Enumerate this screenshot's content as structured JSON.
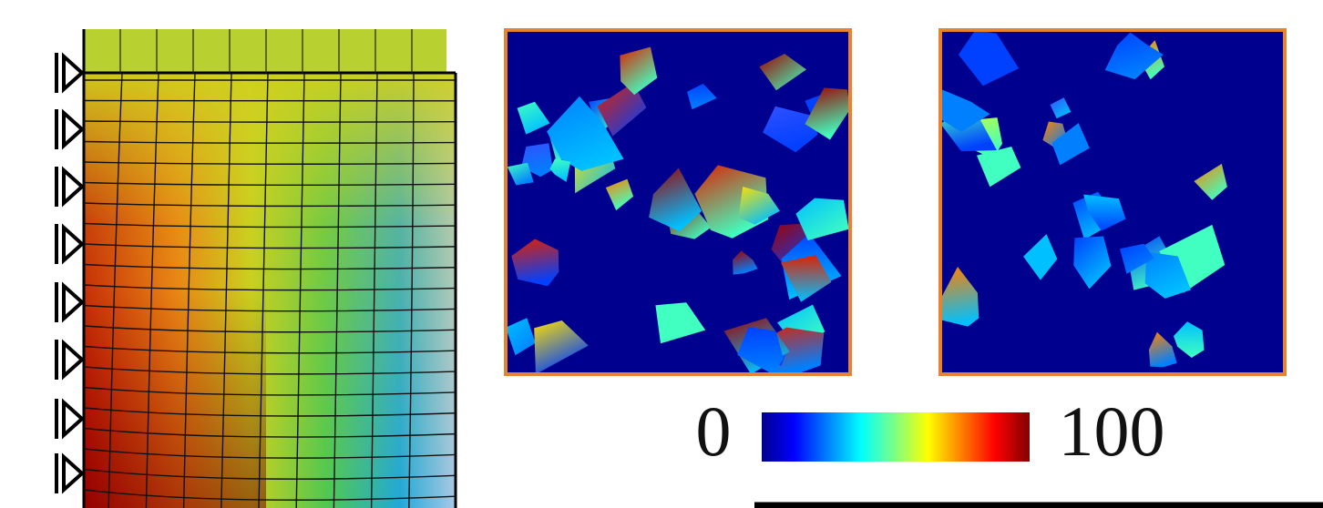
{
  "colorbar": {
    "min_label": "0",
    "max_label": "100"
  }
}
